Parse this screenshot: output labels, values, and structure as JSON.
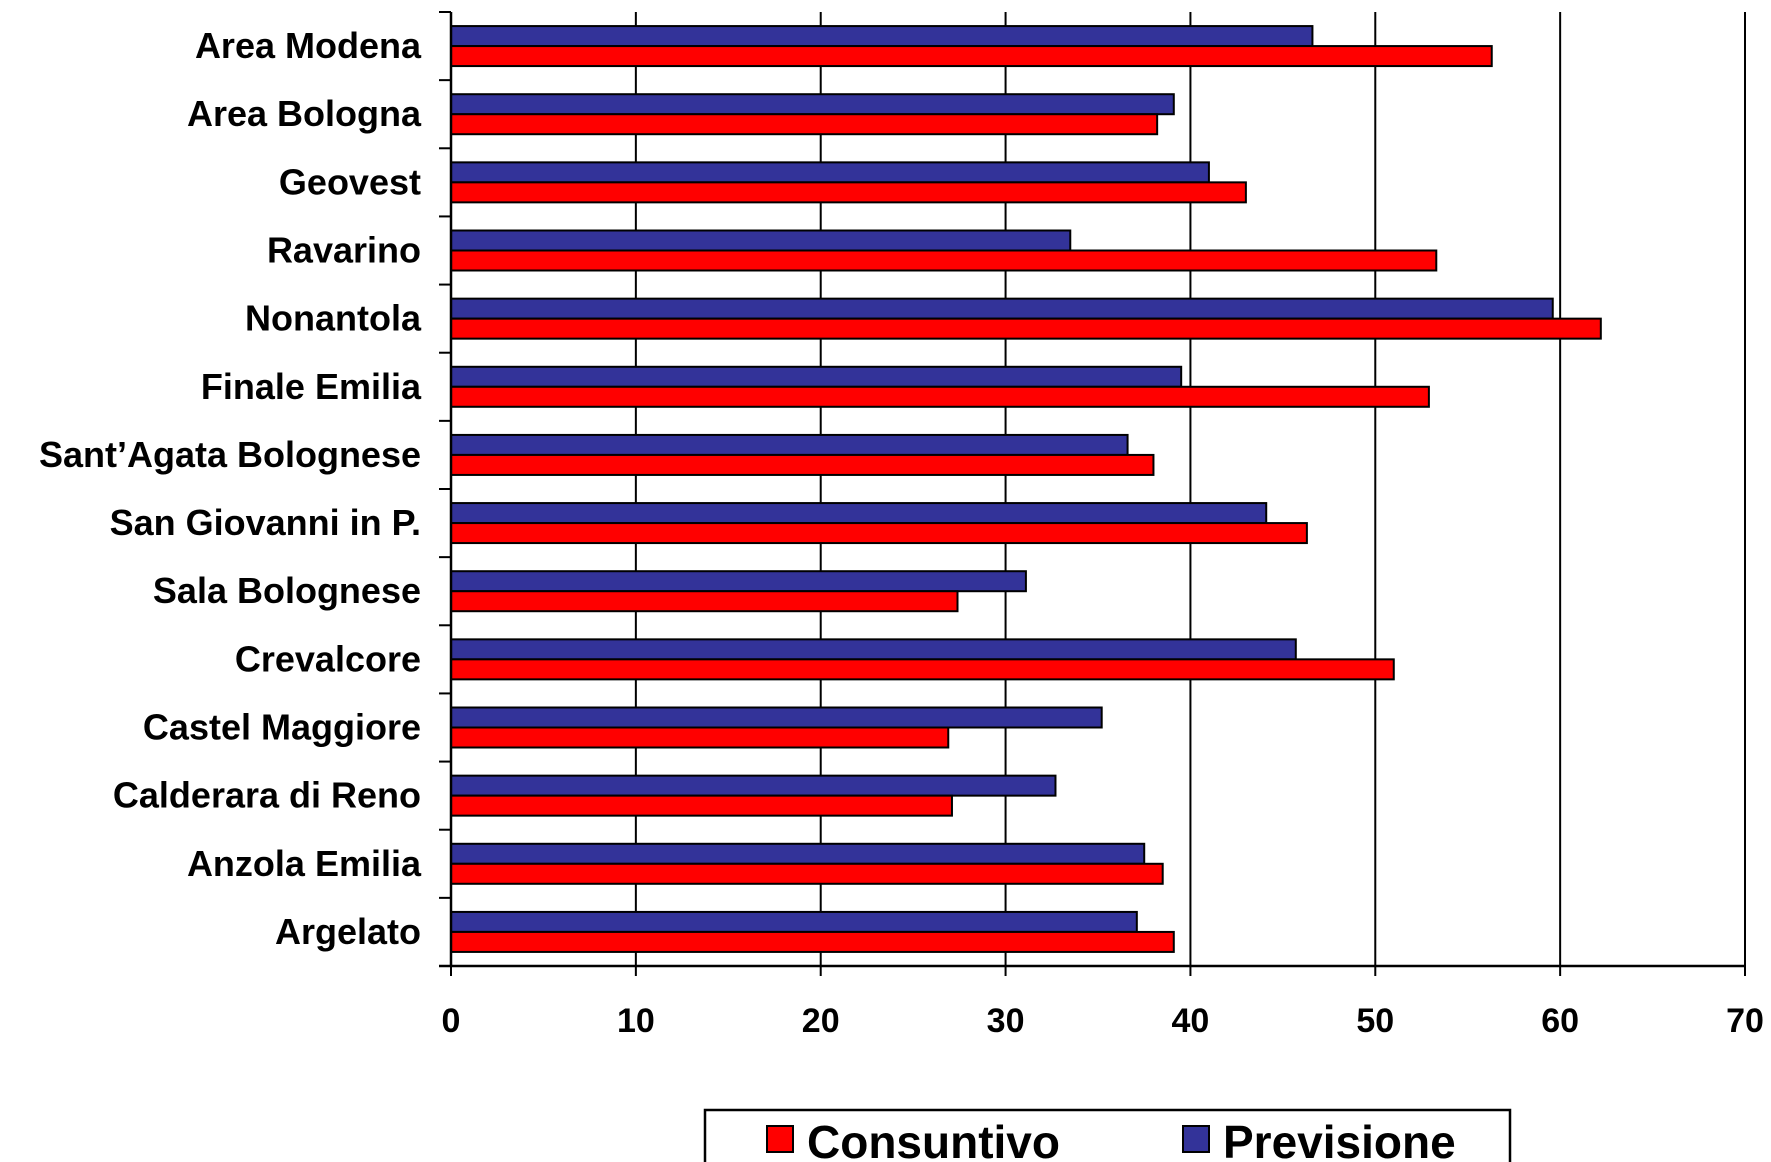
{
  "chart_data": {
    "type": "bar",
    "orientation": "horizontal",
    "categories": [
      "Area Modena",
      "Area Bologna",
      "Geovest",
      "Ravarino",
      "Nonantola",
      "Finale Emilia",
      "Sant’Agata Bolognese",
      "San Giovanni in P.",
      "Sala Bolognese",
      "Crevalcore",
      "Castel Maggiore",
      "Calderara di Reno",
      "Anzola Emilia",
      "Argelato"
    ],
    "series": [
      {
        "name": "Previsione",
        "color": "#333399",
        "values": [
          46.6,
          39.1,
          41.0,
          33.5,
          59.6,
          39.5,
          36.6,
          44.1,
          31.1,
          45.7,
          35.2,
          32.7,
          37.5,
          37.1
        ]
      },
      {
        "name": "Consuntivo",
        "color": "#ff0000",
        "values": [
          56.3,
          38.2,
          43.0,
          53.3,
          62.2,
          52.9,
          38.0,
          46.3,
          27.4,
          51.0,
          26.9,
          27.1,
          38.5,
          39.1
        ]
      }
    ],
    "xlim": [
      0,
      70
    ],
    "xticks": [
      "0",
      "10",
      "20",
      "30",
      "40",
      "50",
      "60",
      "70"
    ],
    "grid": "vertical",
    "legend": {
      "position": "bottom",
      "entries": [
        "Consuntivo",
        "Previsione"
      ]
    },
    "title": "",
    "xlabel": "",
    "ylabel": ""
  }
}
